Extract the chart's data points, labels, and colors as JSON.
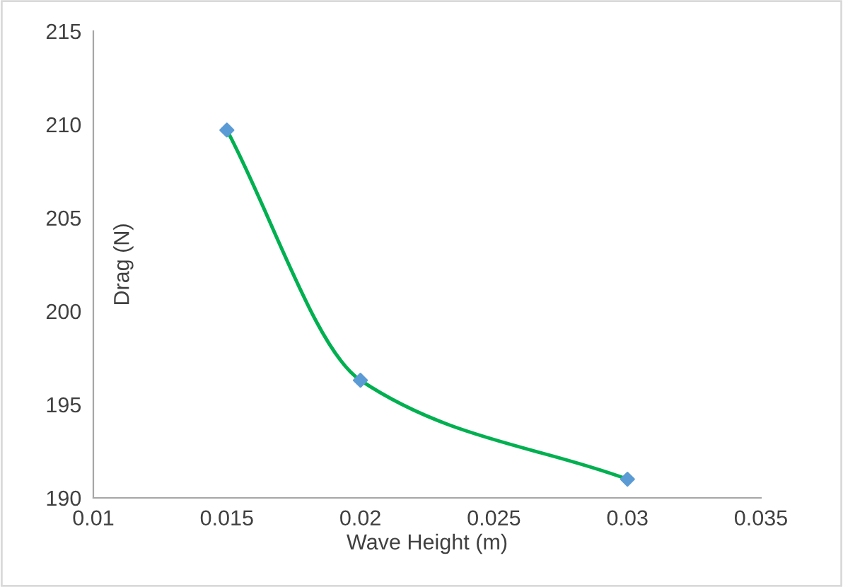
{
  "chart_data": {
    "type": "line",
    "xlabel": "Wave Height (m)",
    "ylabel": "Drag (N)",
    "x": [
      0.015,
      0.02,
      0.03
    ],
    "series": [
      {
        "color": "#00b050",
        "colors": [
          "#5b9bd5",
          "#5b9bd5",
          "#5b9bd5"
        ],
        "values": [
          209.7,
          196.3,
          191.0
        ]
      }
    ],
    "xlim": [
      0.01,
      0.035
    ],
    "xticks": [
      0.01,
      0.015,
      0.02,
      0.025,
      0.03,
      0.035
    ],
    "ylim": [
      190,
      215
    ],
    "yticks": [
      190,
      195,
      200,
      205,
      210,
      215
    ],
    "grid": false,
    "legend": false,
    "marker": "diamond",
    "line_style": "solid"
  }
}
